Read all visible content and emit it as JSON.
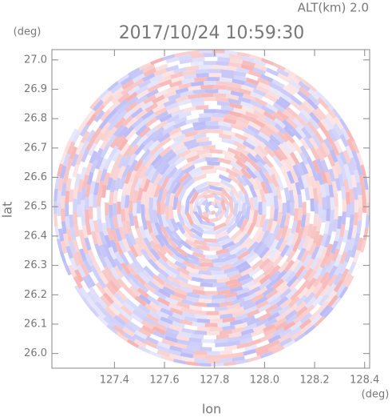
{
  "chart_data": {
    "type": "radar-ppi",
    "title": "2017/10/24 10:59:30",
    "subtitle": "ALT(km) 2.0",
    "x_label": "lon",
    "y_label": "lat",
    "x_unit": "(deg)",
    "y_unit": "(deg)",
    "xlim": [
      127.15,
      128.42
    ],
    "ylim": [
      25.95,
      27.035
    ],
    "xticks": [
      127.4,
      127.6,
      127.8,
      {
        "value": 128.0,
        "label": "128.0"
      },
      128.2,
      128.4
    ],
    "yticks": [
      {
        "value": 26.0,
        "label": "26.0"
      },
      26.1,
      26.2,
      26.3,
      26.4,
      26.5,
      26.6,
      26.7,
      26.8,
      26.9,
      {
        "value": 27.0,
        "label": "27.0"
      }
    ],
    "positive_color": "#f4a0a0",
    "negative_color": "#a8a8f4"
  }
}
